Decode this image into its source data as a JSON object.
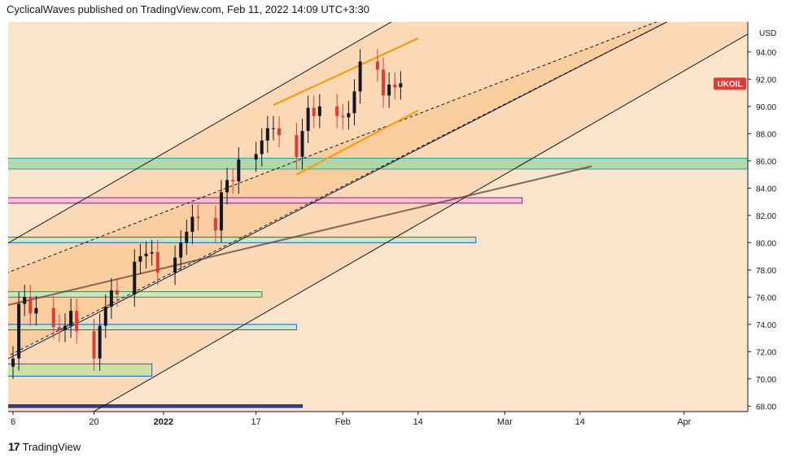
{
  "header": {
    "text": "CyclicalWaves published on TradingView.com, Feb 11, 2022 14:09 UTC+3:30"
  },
  "footer": {
    "logo_icon": "tradingview-logo-icon",
    "brand": "TradingView"
  },
  "chart_data": {
    "type": "candlestick",
    "symbol": "UKOIL",
    "currency": "USD",
    "last_price": 91.7,
    "price_tag_color": "#e53935",
    "y_ticks": [
      68.0,
      70.0,
      72.0,
      74.0,
      76.0,
      78.0,
      80.0,
      82.0,
      84.0,
      86.0,
      88.0,
      90.0,
      92.0,
      94.0
    ],
    "ylim": [
      67.6,
      96.2
    ],
    "x_ticks": [
      {
        "label": "6",
        "date": "2021-12-06"
      },
      {
        "label": "20",
        "date": "2021-12-20"
      },
      {
        "label": "2022",
        "date": "2022-01-01",
        "bold": true
      },
      {
        "label": "17",
        "date": "2022-01-17"
      },
      {
        "label": "Feb",
        "date": "2022-02-01"
      },
      {
        "label": "14",
        "date": "2022-02-14"
      },
      {
        "label": "Mar",
        "date": "2022-03-01"
      },
      {
        "label": "14",
        "date": "2022-03-14"
      },
      {
        "label": "Apr",
        "date": "2022-04-01"
      }
    ],
    "xlim": [
      "2021-12-06",
      "2022-04-12"
    ],
    "up_color": "#131722",
    "down_color": "#e53935",
    "closes": [
      [
        "2021-12-06",
        71.5
      ],
      [
        "2021-12-07",
        75.5
      ],
      [
        "2021-12-08",
        76.0
      ],
      [
        "2021-12-09",
        74.8
      ],
      [
        "2021-12-10",
        75.2
      ],
      [
        "2021-12-13",
        73.8
      ],
      [
        "2021-12-14",
        73.6
      ],
      [
        "2021-12-15",
        73.9
      ],
      [
        "2021-12-16",
        75.0
      ],
      [
        "2021-12-17",
        73.5
      ],
      [
        "2021-12-20",
        71.5
      ],
      [
        "2021-12-21",
        73.9
      ],
      [
        "2021-12-22",
        75.3
      ],
      [
        "2021-12-23",
        76.5
      ],
      [
        "2021-12-24",
        76.2
      ],
      [
        "2021-12-27",
        78.6
      ],
      [
        "2021-12-28",
        79.0
      ],
      [
        "2021-12-29",
        79.2
      ],
      [
        "2021-12-30",
        79.3
      ],
      [
        "2021-12-31",
        77.8
      ],
      [
        "2022-01-03",
        78.9
      ],
      [
        "2022-01-04",
        80.0
      ],
      [
        "2022-01-05",
        80.8
      ],
      [
        "2022-01-06",
        81.9
      ],
      [
        "2022-01-07",
        81.8
      ],
      [
        "2022-01-10",
        80.9
      ],
      [
        "2022-01-11",
        83.7
      ],
      [
        "2022-01-12",
        84.6
      ],
      [
        "2022-01-13",
        84.5
      ],
      [
        "2022-01-14",
        86.1
      ],
      [
        "2022-01-17",
        86.5
      ],
      [
        "2022-01-18",
        87.5
      ],
      [
        "2022-01-19",
        88.4
      ],
      [
        "2022-01-20",
        88.4
      ],
      [
        "2022-01-21",
        87.9
      ],
      [
        "2022-01-24",
        86.3
      ],
      [
        "2022-01-25",
        88.2
      ],
      [
        "2022-01-26",
        89.9
      ],
      [
        "2022-01-27",
        89.3
      ],
      [
        "2022-01-28",
        90.0
      ],
      [
        "2022-01-31",
        89.3
      ],
      [
        "2022-02-01",
        89.2
      ],
      [
        "2022-02-02",
        89.5
      ],
      [
        "2022-02-03",
        91.1
      ],
      [
        "2022-02-04",
        93.3
      ],
      [
        "2022-02-07",
        92.7
      ],
      [
        "2022-02-08",
        90.8
      ],
      [
        "2022-02-09",
        91.6
      ],
      [
        "2022-02-10",
        91.4
      ],
      [
        "2022-02-11",
        91.7
      ]
    ],
    "horizontal_zones": [
      {
        "name": "",
        "from": 85.4,
        "to": 86.2,
        "start": "2021-12-02",
        "end": "2022-04-16",
        "fill": "#a5d6a7",
        "border": "#26a69a"
      },
      {
        "name": "",
        "from": 82.9,
        "to": 83.3,
        "start": "2021-12-02",
        "end": "2022-03-04",
        "fill": "#f8bbd0",
        "border": "#7b1fa2"
      },
      {
        "name": "",
        "from": 80.0,
        "to": 80.4,
        "start": "2021-12-02",
        "end": "2022-02-24",
        "fill": "#c8e6c9",
        "border": "#1565c0"
      },
      {
        "name": "",
        "from": 76.0,
        "to": 76.4,
        "start": "2021-12-02",
        "end": "2022-01-18",
        "fill": "#c8e6c9",
        "border": "#388e3c"
      },
      {
        "name": "",
        "from": 73.6,
        "to": 74.0,
        "start": "2021-12-02",
        "end": "2022-01-24",
        "fill": "#c8e6c9",
        "border": "#1565c0"
      },
      {
        "name": "",
        "from": 70.2,
        "to": 71.1,
        "start": "2021-12-02",
        "end": "2021-12-30",
        "fill": "#c5e1a5",
        "border": "#1565c0"
      },
      {
        "name": "",
        "from": 67.9,
        "to": 68.1,
        "start": "2021-12-02",
        "end": "2022-01-25",
        "fill": "#1a237e",
        "border": "#1a237e"
      }
    ],
    "channel_lines": [
      {
        "name": "outer-upper",
        "from": [
          "2021-12-02",
          79.2
        ],
        "to": [
          "2022-02-11",
          96.6
        ],
        "color": "#131722",
        "dash": false
      },
      {
        "name": "upper-mid",
        "from": [
          "2021-12-02",
          77.3
        ],
        "to": [
          "2022-03-29",
          96.5
        ],
        "color": "#131722",
        "dash": true
      },
      {
        "name": "mid",
        "from": [
          "2021-12-02",
          71.0
        ],
        "to": [
          "2022-03-29",
          96.2
        ],
        "color": "#131722",
        "dash": true
      },
      {
        "name": "lower-mid",
        "from": [
          "2021-12-02",
          70.8
        ],
        "to": [
          "2022-03-29",
          96.2
        ],
        "color": "#131722",
        "dash": false
      },
      {
        "name": "outer-lower",
        "from": [
          "2021-12-02",
          63.2
        ],
        "to": [
          "2022-04-14",
          95.8
        ],
        "color": "#131722",
        "dash": false
      },
      {
        "name": "trend-grey",
        "from": [
          "2021-12-02",
          75.1
        ],
        "to": [
          "2022-03-16",
          85.6
        ],
        "color": "#5d4037",
        "dash": false
      },
      {
        "name": "orange-upper",
        "from": [
          "2022-01-20",
          90.1
        ],
        "to": [
          "2022-02-14",
          95.0
        ],
        "color": "#ff9800",
        "dash": false
      },
      {
        "name": "orange-lower",
        "from": [
          "2022-01-24",
          85.0
        ],
        "to": [
          "2022-02-14",
          89.7
        ],
        "color": "#ff9800",
        "dash": false
      }
    ]
  }
}
